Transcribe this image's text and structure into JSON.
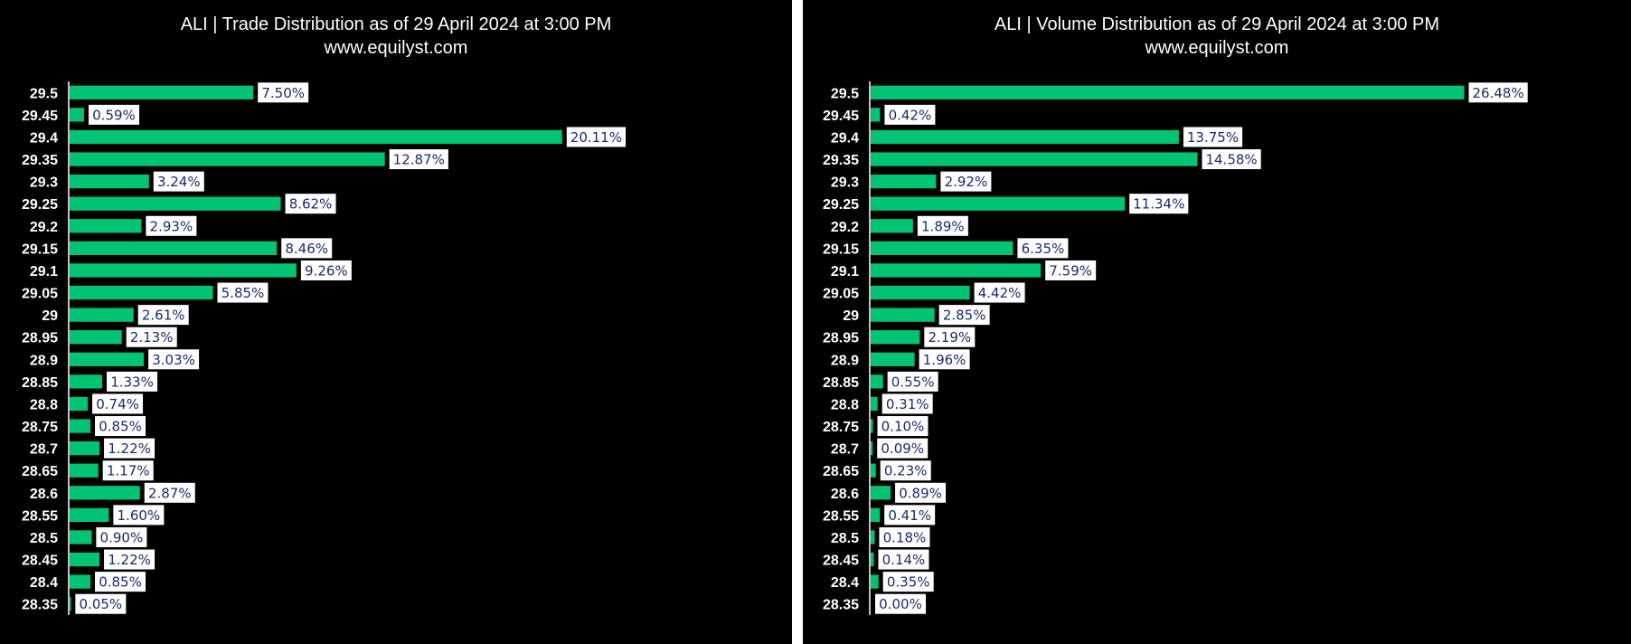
{
  "chart_data": [
    {
      "type": "bar",
      "orientation": "horizontal",
      "title": "ALI | Trade Distribution as of 29 April 2024 at 3:00 PM",
      "subtitle": "www.equilyst.com",
      "categories": [
        "29.5",
        "29.45",
        "29.4",
        "29.35",
        "29.3",
        "29.25",
        "29.2",
        "29.15",
        "29.1",
        "29.05",
        "29",
        "28.95",
        "28.9",
        "28.85",
        "28.8",
        "28.75",
        "28.7",
        "28.65",
        "28.6",
        "28.55",
        "28.5",
        "28.45",
        "28.4",
        "28.35"
      ],
      "values": [
        7.5,
        0.59,
        20.11,
        12.87,
        3.24,
        8.62,
        2.93,
        8.46,
        9.26,
        5.85,
        2.61,
        2.13,
        3.03,
        1.33,
        0.74,
        0.85,
        1.22,
        1.17,
        2.87,
        1.6,
        0.9,
        1.22,
        0.85,
        0.05
      ],
      "labels": [
        "7.50%",
        "0.59%",
        "20.11%",
        "12.87%",
        "3.24%",
        "8.62%",
        "2.93%",
        "8.46%",
        "9.26%",
        "5.85%",
        "2.61%",
        "2.13%",
        "3.03%",
        "1.33%",
        "0.74%",
        "0.85%",
        "1.22%",
        "1.17%",
        "2.87%",
        "1.60%",
        "0.90%",
        "1.22%",
        "0.85%",
        "0.05%"
      ],
      "xlim": [
        0,
        22
      ],
      "bar_color": "#00c473",
      "background": "#000000",
      "grid": false
    },
    {
      "type": "bar",
      "orientation": "horizontal",
      "title": "ALI | Volume Distribution as of 29 April 2024 at 3:00 PM",
      "subtitle": "www.equilyst.com",
      "categories": [
        "29.5",
        "29.45",
        "29.4",
        "29.35",
        "29.3",
        "29.25",
        "29.2",
        "29.15",
        "29.1",
        "29.05",
        "29",
        "28.95",
        "28.9",
        "28.85",
        "28.8",
        "28.75",
        "28.7",
        "28.65",
        "28.6",
        "28.55",
        "28.5",
        "28.45",
        "28.4",
        "28.35"
      ],
      "values": [
        26.48,
        0.42,
        13.75,
        14.58,
        2.92,
        11.34,
        1.89,
        6.35,
        7.59,
        4.42,
        2.85,
        2.19,
        1.96,
        0.55,
        0.31,
        0.1,
        0.09,
        0.23,
        0.89,
        0.41,
        0.18,
        0.14,
        0.35,
        0.0
      ],
      "labels": [
        "26.48%",
        "0.42%",
        "13.75%",
        "14.58%",
        "2.92%",
        "11.34%",
        "1.89%",
        "6.35%",
        "7.59%",
        "4.42%",
        "2.85%",
        "2.19%",
        "1.96%",
        "0.55%",
        "0.31%",
        "0.10%",
        "0.09%",
        "0.23%",
        "0.89%",
        "0.41%",
        "0.18%",
        "0.14%",
        "0.35%",
        "0.00%"
      ],
      "xlim": [
        0,
        29
      ],
      "bar_color": "#00c473",
      "background": "#000000",
      "grid": false
    }
  ]
}
